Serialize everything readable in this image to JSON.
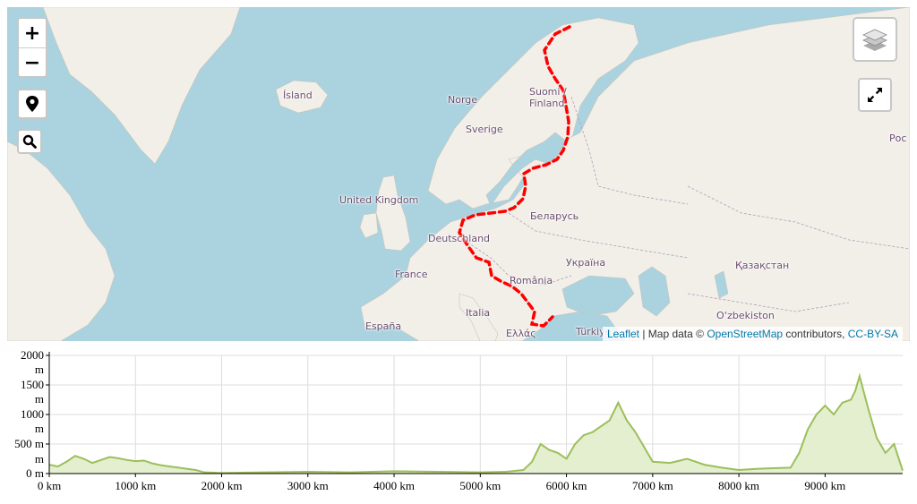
{
  "map": {
    "labels": [
      {
        "key": "island",
        "text": "Ísland"
      },
      {
        "key": "norge",
        "text": "Norge"
      },
      {
        "key": "suomi",
        "text": "Suomi /"
      },
      {
        "key": "finland",
        "text": "Finland"
      },
      {
        "key": "sverige",
        "text": "Sverige"
      },
      {
        "key": "uk",
        "text": "United Kingdom"
      },
      {
        "key": "belarus",
        "text": "Беларусь"
      },
      {
        "key": "deutschland",
        "text": "Deutschland"
      },
      {
        "key": "ukraina",
        "text": "Україна"
      },
      {
        "key": "france",
        "text": "France"
      },
      {
        "key": "romania",
        "text": "România"
      },
      {
        "key": "kazakhstan",
        "text": "Қазақстан"
      },
      {
        "key": "italia",
        "text": "Italia"
      },
      {
        "key": "uzbekistan",
        "text": "O‘zbekiston"
      },
      {
        "key": "espana",
        "text": "España"
      },
      {
        "key": "ellas",
        "text": "Ελλάς"
      },
      {
        "key": "turkiye",
        "text": "Türkiye"
      },
      {
        "key": "rossiya",
        "text": "Рос"
      }
    ],
    "route_color": "#ff0000",
    "attribution": {
      "leaflet": "Leaflet",
      "sep": " | Map data © ",
      "osm": "OpenStreetMap",
      "contrib": " contributors, ",
      "license": "CC-BY-SA"
    },
    "controls": {
      "zoom_in": "+",
      "zoom_out": "−",
      "icons": [
        "map-marker-icon",
        "search-icon",
        "layers-icon",
        "fullscreen-icon"
      ]
    }
  },
  "chart_data": {
    "type": "area",
    "title": "",
    "xlabel": "",
    "ylabel": "",
    "color": "#9cbf5a",
    "fill": "#e3efcf",
    "xlim": [
      0,
      9900
    ],
    "ylim": [
      0,
      2000
    ],
    "x_ticks": [
      "0 km",
      "1000 km",
      "2000 km",
      "3000 km",
      "4000 km",
      "5000 km",
      "6000 km",
      "7000 km",
      "8000 km",
      "9000 km"
    ],
    "y_ticks": [
      {
        "value": "2000",
        "unit": ""
      },
      {
        "value": "1500",
        "unit": "m"
      },
      {
        "value": "1000",
        "unit": "m"
      },
      {
        "value": "500 m",
        "unit": "m"
      },
      {
        "value": "0 m",
        "unit": ""
      }
    ],
    "x": [
      0,
      100,
      200,
      300,
      400,
      500,
      600,
      700,
      800,
      900,
      1000,
      1100,
      1200,
      1300,
      1400,
      1500,
      1600,
      1700,
      1800,
      2000,
      2500,
      3000,
      3500,
      4000,
      4500,
      5000,
      5300,
      5500,
      5600,
      5700,
      5800,
      5900,
      6000,
      6100,
      6200,
      6300,
      6400,
      6500,
      6550,
      6600,
      6700,
      6800,
      6900,
      7000,
      7200,
      7400,
      7600,
      7800,
      8000,
      8200,
      8400,
      8600,
      8700,
      8800,
      8900,
      9000,
      9100,
      9200,
      9300,
      9350,
      9400,
      9500,
      9600,
      9700,
      9800,
      9900
    ],
    "y": [
      150,
      120,
      200,
      300,
      250,
      180,
      230,
      280,
      260,
      230,
      210,
      220,
      170,
      140,
      120,
      100,
      80,
      60,
      20,
      10,
      20,
      30,
      20,
      40,
      30,
      20,
      30,
      60,
      200,
      500,
      400,
      350,
      250,
      500,
      650,
      700,
      800,
      900,
      1050,
      1200,
      900,
      700,
      450,
      200,
      180,
      250,
      150,
      100,
      60,
      80,
      90,
      100,
      350,
      750,
      1000,
      1150,
      1000,
      1200,
      1250,
      1400,
      1650,
      1100,
      600,
      350,
      500,
      50
    ]
  }
}
